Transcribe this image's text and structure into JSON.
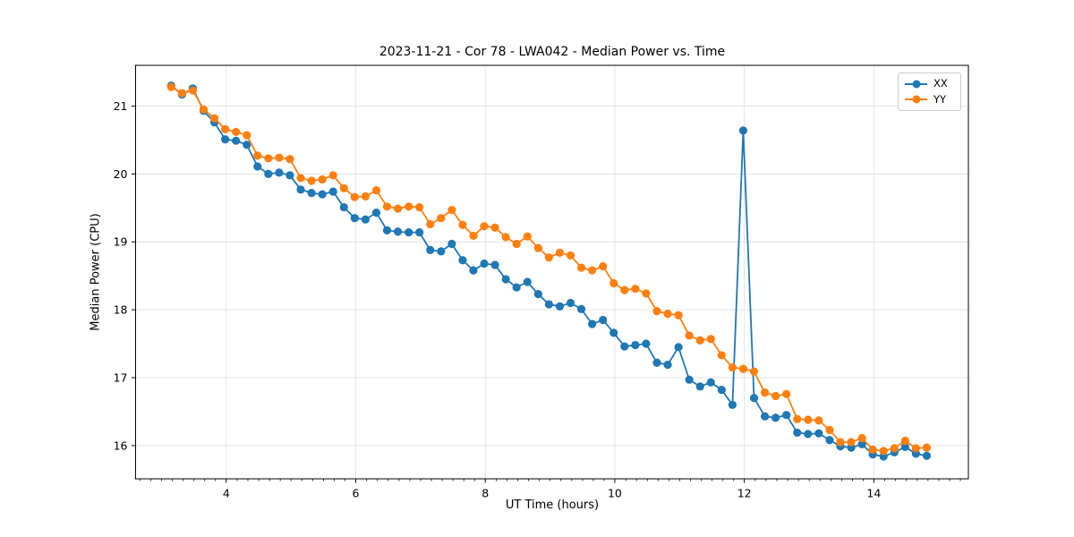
{
  "figure": {
    "background": "#ffffff"
  },
  "chart_data": {
    "type": "line",
    "title": "2023-11-21 - Cor 78 - LWA042 - Median Power vs. Time",
    "xlabel": "UT Time (hours)",
    "ylabel": "Median Power (CPU)",
    "xlim": [
      2.6,
      15.46
    ],
    "ylim": [
      15.51,
      21.6
    ],
    "x_ticks": [
      4,
      6,
      8,
      10,
      12,
      14
    ],
    "y_ticks": [
      16,
      17,
      18,
      19,
      20,
      21
    ],
    "x_minor_tick_interval": 0.1667,
    "grid": true,
    "grid_color": "#e1e1e1",
    "legend_position": "upper right",
    "x": [
      3.15,
      3.317,
      3.483,
      3.65,
      3.817,
      3.983,
      4.15,
      4.317,
      4.483,
      4.65,
      4.817,
      4.983,
      5.15,
      5.317,
      5.483,
      5.65,
      5.817,
      5.983,
      6.15,
      6.317,
      6.483,
      6.65,
      6.817,
      6.983,
      7.15,
      7.317,
      7.483,
      7.65,
      7.817,
      7.983,
      8.15,
      8.317,
      8.483,
      8.65,
      8.817,
      8.983,
      9.15,
      9.317,
      9.483,
      9.65,
      9.817,
      9.983,
      10.15,
      10.317,
      10.483,
      10.65,
      10.817,
      10.983,
      11.15,
      11.317,
      11.483,
      11.65,
      11.817,
      11.983,
      12.15,
      12.317,
      12.483,
      12.65,
      12.817,
      12.983,
      13.15,
      13.317,
      13.483,
      13.65,
      13.817,
      13.983,
      14.15,
      14.317,
      14.483,
      14.65,
      14.817
    ],
    "series": [
      {
        "name": "XX",
        "color": "#1f77b4",
        "marker": "circle",
        "values": [
          21.3,
          21.17,
          21.26,
          20.93,
          20.76,
          20.51,
          20.49,
          20.43,
          20.11,
          20.0,
          20.02,
          19.98,
          19.77,
          19.72,
          19.7,
          19.74,
          19.51,
          19.35,
          19.33,
          19.43,
          19.17,
          19.15,
          19.14,
          19.14,
          18.88,
          18.86,
          18.97,
          18.73,
          18.58,
          18.68,
          18.66,
          18.45,
          18.33,
          18.41,
          18.23,
          18.08,
          18.05,
          18.1,
          18.01,
          17.79,
          17.85,
          17.66,
          17.46,
          17.48,
          17.5,
          17.22,
          17.19,
          17.45,
          16.97,
          16.87,
          16.93,
          16.82,
          16.6,
          20.64,
          16.7,
          16.43,
          16.41,
          16.45,
          16.19,
          16.17,
          16.18,
          16.08,
          15.99,
          15.97,
          16.02,
          15.87,
          15.84,
          15.9,
          15.98,
          15.88,
          15.85
        ]
      },
      {
        "name": "YY",
        "color": "#ff7f0e",
        "marker": "circle",
        "values": [
          21.28,
          21.19,
          21.23,
          20.95,
          20.82,
          20.66,
          20.62,
          20.57,
          20.27,
          20.23,
          20.24,
          20.22,
          19.94,
          19.9,
          19.92,
          19.98,
          19.79,
          19.66,
          19.67,
          19.76,
          19.52,
          19.49,
          19.52,
          19.51,
          19.26,
          19.35,
          19.47,
          19.25,
          19.09,
          19.23,
          19.21,
          19.07,
          18.97,
          19.08,
          18.91,
          18.77,
          18.84,
          18.8,
          18.62,
          18.58,
          18.64,
          18.39,
          18.29,
          18.31,
          18.24,
          17.98,
          17.94,
          17.92,
          17.62,
          17.55,
          17.57,
          17.33,
          17.15,
          17.13,
          17.09,
          16.78,
          16.73,
          16.76,
          16.39,
          16.38,
          16.37,
          16.23,
          16.05,
          16.05,
          16.11,
          15.94,
          15.92,
          15.96,
          16.07,
          15.96,
          15.97
        ]
      }
    ]
  },
  "legend": {
    "items": [
      {
        "label": "XX",
        "color": "#1f77b4"
      },
      {
        "label": "YY",
        "color": "#ff7f0e"
      }
    ]
  }
}
